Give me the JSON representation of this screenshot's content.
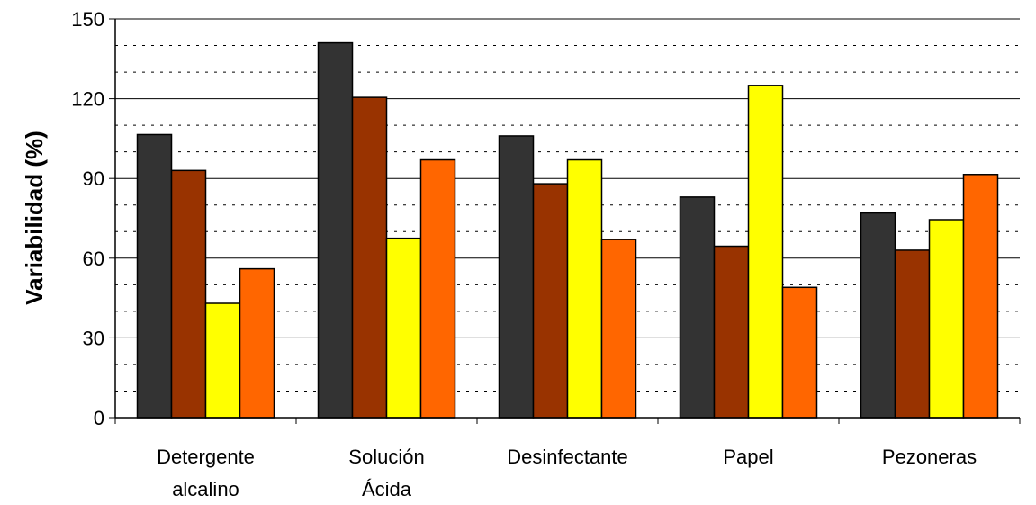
{
  "chart_data": {
    "type": "bar",
    "ylabel": "Variabilidad (%)",
    "ylim": [
      0,
      150
    ],
    "yticks": [
      0,
      30,
      60,
      90,
      120,
      150
    ],
    "gridlines": "major solid, minor dotted every 10",
    "categories": [
      [
        "Detergente",
        "alcalino"
      ],
      [
        "Solución",
        "Ácida"
      ],
      [
        "Desinfectante"
      ],
      [
        "Papel"
      ],
      [
        "Pezoneras"
      ]
    ],
    "series": [
      {
        "color": "#333333",
        "values": [
          106.5,
          141,
          106,
          83,
          77
        ]
      },
      {
        "color": "#993300",
        "values": [
          93,
          120.5,
          88,
          64.5,
          63
        ]
      },
      {
        "color": "#ffff00",
        "values": [
          43,
          67.5,
          97,
          125,
          74.5
        ]
      },
      {
        "color": "#ff6600",
        "values": [
          56,
          97,
          67,
          49,
          91.5
        ]
      }
    ]
  }
}
